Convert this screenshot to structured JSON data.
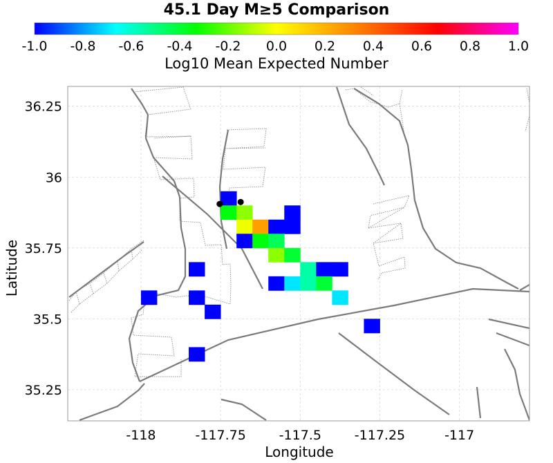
{
  "title": "45.1 Day M≥5 Comparison",
  "colorbar": {
    "label": "Log10 Mean Expected Number",
    "min": -1.0,
    "max": 1.0,
    "ticks": [
      "-1.0",
      "-0.8",
      "-0.6",
      "-0.4",
      "-0.2",
      "0.0",
      "0.2",
      "0.4",
      "0.6",
      "0.8",
      "1.0"
    ],
    "stops": [
      "#0000ff",
      "#00ffff",
      "#00ff00",
      "#ffff00",
      "#ff8000",
      "#ff0000",
      "#ff00ff"
    ]
  },
  "axes": {
    "xlabel": "Longitude",
    "ylabel": "Latitude",
    "xlim": [
      -118.23,
      -116.78
    ],
    "ylim": [
      35.14,
      36.32
    ],
    "xticks": [
      -118,
      -117.75,
      -117.5,
      -117.25,
      -117
    ],
    "xtick_labels": [
      "-118",
      "-117.75",
      "-117.5",
      "-117.25",
      "-117"
    ],
    "yticks": [
      35.25,
      35.5,
      35.75,
      36,
      36.25
    ],
    "ytick_labels": [
      "35.25",
      "35.5",
      "35.75",
      "36",
      "36.25"
    ],
    "grid": true
  },
  "chart_data": {
    "type": "heatmap",
    "cell_size_deg": 0.05,
    "cells": [
      {
        "lon": -117.725,
        "lat": 35.925,
        "value": -1.0
      },
      {
        "lon": -117.725,
        "lat": 35.875,
        "value": -0.35
      },
      {
        "lon": -117.675,
        "lat": 35.875,
        "value": -0.15
      },
      {
        "lon": -117.675,
        "lat": 35.825,
        "value": -0.02
      },
      {
        "lon": -117.625,
        "lat": 35.825,
        "value": 0.25
      },
      {
        "lon": -117.575,
        "lat": 35.825,
        "value": -1.0
      },
      {
        "lon": -117.525,
        "lat": 35.825,
        "value": -1.0
      },
      {
        "lon": -117.525,
        "lat": 35.875,
        "value": -1.0
      },
      {
        "lon": -117.675,
        "lat": 35.775,
        "value": -1.0
      },
      {
        "lon": -117.625,
        "lat": 35.775,
        "value": -0.35
      },
      {
        "lon": -117.575,
        "lat": 35.775,
        "value": -0.45
      },
      {
        "lon": -117.575,
        "lat": 35.725,
        "value": -0.15
      },
      {
        "lon": -117.525,
        "lat": 35.725,
        "value": -0.4
      },
      {
        "lon": -117.475,
        "lat": 35.675,
        "value": -0.55
      },
      {
        "lon": -117.425,
        "lat": 35.675,
        "value": -1.0
      },
      {
        "lon": -117.375,
        "lat": 35.675,
        "value": -1.0
      },
      {
        "lon": -117.575,
        "lat": 35.625,
        "value": -1.0
      },
      {
        "lon": -117.525,
        "lat": 35.625,
        "value": -0.7
      },
      {
        "lon": -117.475,
        "lat": 35.625,
        "value": -0.55
      },
      {
        "lon": -117.425,
        "lat": 35.625,
        "value": -0.4
      },
      {
        "lon": -117.375,
        "lat": 35.575,
        "value": -0.7
      },
      {
        "lon": -117.825,
        "lat": 35.675,
        "value": -1.0
      },
      {
        "lon": -117.975,
        "lat": 35.575,
        "value": -1.0
      },
      {
        "lon": -117.825,
        "lat": 35.575,
        "value": -1.0
      },
      {
        "lon": -117.775,
        "lat": 35.525,
        "value": -1.0
      },
      {
        "lon": -117.275,
        "lat": 35.475,
        "value": -1.0
      },
      {
        "lon": -117.825,
        "lat": 35.375,
        "value": -1.0
      }
    ],
    "events": [
      {
        "lon": -117.753,
        "lat": 35.905
      },
      {
        "lon": -117.687,
        "lat": 35.912
      }
    ]
  },
  "colors": {
    "fault_solid": "#7a7a7a",
    "fault_dotted": "#8a8a8a",
    "grid": "#d8d8d8",
    "frame": "#9a9a9a",
    "event": "#000000"
  }
}
